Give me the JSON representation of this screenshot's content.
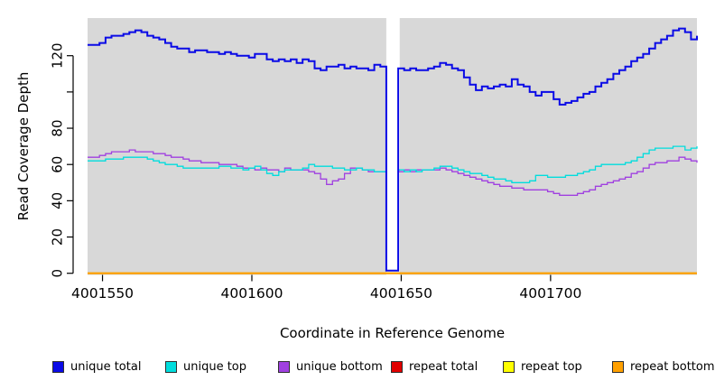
{
  "chart_data": {
    "type": "line",
    "subtype": "step",
    "title": "",
    "xlabel": "Coordinate in Reference Genome",
    "ylabel": "Read Coverage Depth",
    "x_start": 4001545,
    "x_step": 2,
    "x_end": 4001749,
    "xlim": [
      4001545,
      4001749
    ],
    "ylim": [
      0,
      140
    ],
    "x_ticks": [
      4001550,
      4001600,
      4001650,
      4001700
    ],
    "x_tick_labels": [
      "4001550",
      "4001600",
      "4001650",
      "4001700"
    ],
    "y_ticks": [
      0,
      20,
      40,
      60,
      80,
      100,
      120
    ],
    "y_tick_labels": [
      "0",
      "20",
      "40",
      "60",
      "80",
      "",
      "120"
    ],
    "plot_background": "#d8d8d8",
    "gap_region": {
      "x1": 4001645,
      "x2": 4001649.5,
      "note": "white band, coverage drops to ~0"
    },
    "grid": false,
    "legend_position": "bottom",
    "series": [
      {
        "name": "unique total",
        "color": "#0a0ae6",
        "width": 2,
        "values": [
          126,
          126,
          127,
          130,
          131,
          131,
          132,
          133,
          134,
          133,
          131,
          130,
          129,
          127,
          125,
          124,
          124,
          122,
          123,
          123,
          122,
          122,
          121,
          122,
          121,
          120,
          120,
          119,
          121,
          121,
          118,
          117,
          118,
          117,
          118,
          116,
          118,
          117,
          113,
          112,
          114,
          114,
          115,
          113,
          114,
          113,
          113,
          112,
          115,
          114,
          1.5,
          1.5,
          113,
          112,
          113,
          112,
          112,
          113,
          114,
          116,
          115,
          113,
          112,
          108,
          104,
          101,
          103,
          102,
          103,
          104,
          103,
          107,
          104,
          103,
          100,
          98,
          100,
          100,
          96,
          93,
          94,
          95,
          97,
          99,
          100,
          103,
          105,
          107,
          110,
          112,
          114,
          117,
          119,
          121,
          124,
          127,
          129,
          131,
          134,
          135,
          133,
          129,
          131
        ]
      },
      {
        "name": "unique top",
        "color": "#00dddd",
        "width": 1.3,
        "values": [
          62,
          62,
          62,
          63,
          63,
          63,
          64,
          64,
          64,
          64,
          63,
          62,
          61,
          60,
          60,
          59,
          58,
          58,
          58,
          58,
          58,
          58,
          59,
          59,
          58,
          58,
          57,
          58,
          59,
          57,
          55,
          54,
          56,
          57,
          57,
          57,
          58,
          60,
          59,
          59,
          59,
          58,
          58,
          57,
          57,
          58,
          57,
          57,
          56,
          56,
          1.5,
          1.5,
          57,
          56,
          57,
          56,
          57,
          57,
          58,
          59,
          59,
          58,
          57,
          56,
          55,
          55,
          54,
          53,
          52,
          52,
          51,
          50,
          50,
          50,
          51,
          54,
          54,
          53,
          53,
          53,
          54,
          54,
          55,
          56,
          57,
          59,
          60,
          60,
          60,
          60,
          61,
          62,
          64,
          66,
          68,
          69,
          69,
          69,
          70,
          70,
          68,
          69,
          70
        ]
      },
      {
        "name": "unique bottom",
        "color": "#a040e0",
        "width": 1.3,
        "values": [
          64,
          64,
          65,
          66,
          67,
          67,
          67,
          68,
          67,
          67,
          67,
          66,
          66,
          65,
          64,
          64,
          63,
          62,
          62,
          61,
          61,
          61,
          60,
          60,
          60,
          59,
          58,
          58,
          57,
          58,
          57,
          57,
          56,
          58,
          57,
          57,
          57,
          56,
          55,
          52,
          49,
          51,
          52,
          55,
          58,
          58,
          57,
          56,
          56,
          56,
          1.5,
          1.5,
          56,
          57,
          56,
          57,
          57,
          57,
          57,
          58,
          57,
          56,
          55,
          54,
          53,
          52,
          51,
          50,
          49,
          48,
          48,
          47,
          47,
          46,
          46,
          46,
          46,
          45,
          44,
          43,
          43,
          43,
          44,
          45,
          46,
          48,
          49,
          50,
          51,
          52,
          53,
          55,
          56,
          58,
          60,
          61,
          61,
          62,
          62,
          64,
          63,
          62,
          61
        ]
      },
      {
        "name": "repeat total",
        "color": "#e00000",
        "width": 1.8,
        "constant": 0
      },
      {
        "name": "repeat top",
        "color": "#ffff00",
        "width": 1.8,
        "constant": 0
      },
      {
        "name": "repeat bottom",
        "color": "#ffa000",
        "width": 1.8,
        "constant": 0
      }
    ]
  },
  "legend_x_positions": [
    58,
    183,
    308,
    433,
    557,
    678
  ]
}
